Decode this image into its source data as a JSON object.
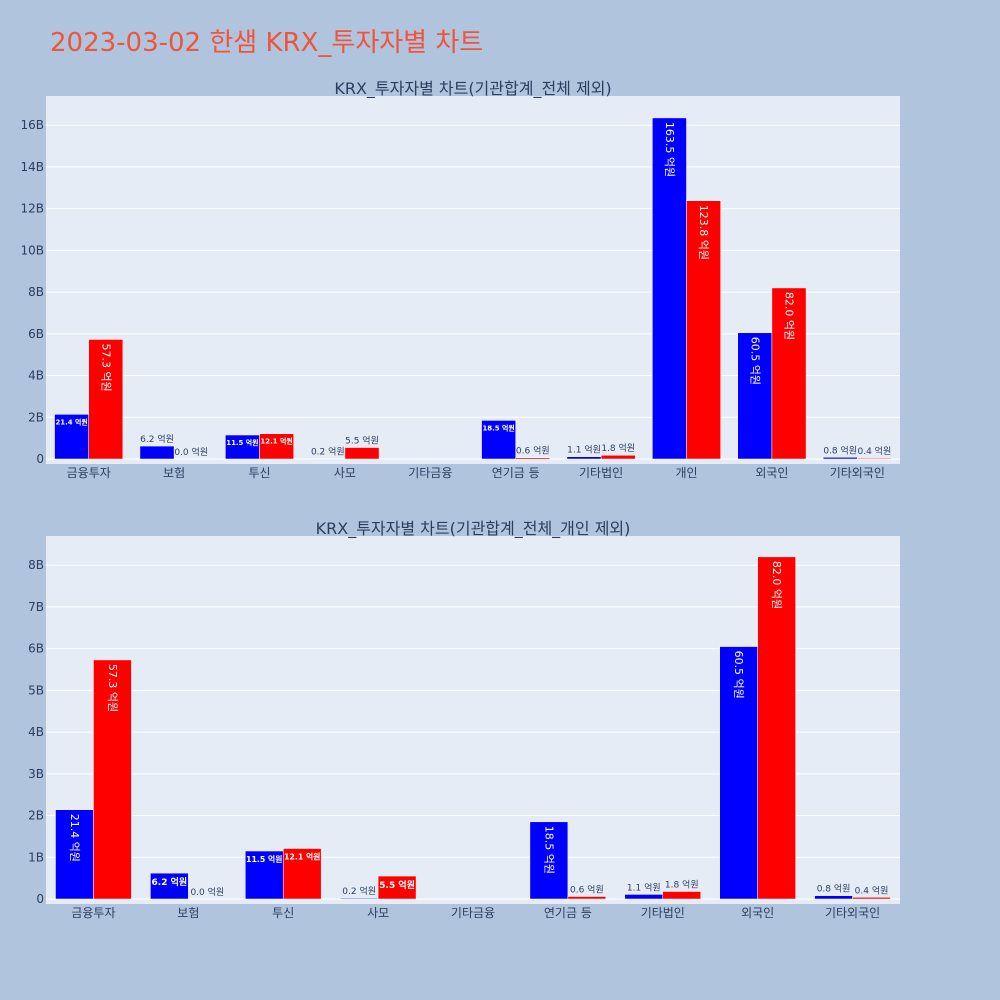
{
  "page": {
    "title": "2023-03-02 한샘 KRX_투자자별 차트",
    "background": "#b0c4de",
    "plot_background": "#e5ecf6",
    "title_color": "#ef553b"
  },
  "chart_data": [
    {
      "type": "bar",
      "title": "KRX_투자자별 차트(기관합계_전체 제외)",
      "categories": [
        "금융투자",
        "보험",
        "투신",
        "사모",
        "기타금융",
        "연기금 등",
        "기타법인",
        "개인",
        "외국인",
        "기타외국인"
      ],
      "series": [
        {
          "color": "#0000ff",
          "values": [
            2140000000,
            620000000,
            1150000000,
            20000000,
            0,
            1850000000,
            110000000,
            16350000000,
            6050000000,
            80000000
          ],
          "labels": [
            "21.4 억원",
            "6.2 억원",
            "11.5 억원",
            "0.2 억원",
            "",
            "18.5 억원",
            "1.1 억원",
            "163.5 억원",
            "60.5 억원",
            "0.8 억원"
          ]
        },
        {
          "color": "#ff0000",
          "values": [
            5730000000,
            0,
            1210000000,
            550000000,
            0,
            60000000,
            180000000,
            12380000000,
            8200000000,
            40000000
          ],
          "labels": [
            "57.3 억원",
            "0.0 억원",
            "12.1 억원",
            "5.5 억원",
            "",
            "0.6 억원",
            "1.8 억원",
            "123.8 억원",
            "82.0 억원",
            "0.4 억원"
          ]
        }
      ],
      "ylim": [
        0,
        17400000000
      ],
      "yticks": [
        0,
        2000000000,
        4000000000,
        6000000000,
        8000000000,
        10000000000,
        12000000000,
        14000000000,
        16000000000
      ],
      "ytick_labels": [
        "0",
        "2B",
        "4B",
        "6B",
        "8B",
        "10B",
        "12B",
        "14B",
        "16B"
      ],
      "grid": true
    },
    {
      "type": "bar",
      "title": "KRX_투자자별 차트(기관합계_전체_개인 제외)",
      "categories": [
        "금융투자",
        "보험",
        "투신",
        "사모",
        "기타금융",
        "연기금 등",
        "기타법인",
        "외국인",
        "기타외국인"
      ],
      "series": [
        {
          "color": "#0000ff",
          "values": [
            2140000000,
            620000000,
            1150000000,
            20000000,
            0,
            1850000000,
            110000000,
            6050000000,
            80000000
          ],
          "labels": [
            "21.4 억원",
            "6.2 억원",
            "11.5 억원",
            "0.2 억원",
            "",
            "18.5 억원",
            "1.1 억원",
            "60.5 억원",
            "0.8 억원"
          ]
        },
        {
          "color": "#ff0000",
          "values": [
            5730000000,
            0,
            1210000000,
            550000000,
            0,
            60000000,
            180000000,
            8200000000,
            40000000
          ],
          "labels": [
            "57.3 억원",
            "0.0 억원",
            "12.1 억원",
            "5.5 억원",
            "",
            "0.6 억원",
            "1.8 억원",
            "82.0 억원",
            "0.4 억원"
          ]
        }
      ],
      "ylim": [
        0,
        8700000000
      ],
      "yticks": [
        0,
        1000000000,
        2000000000,
        3000000000,
        4000000000,
        5000000000,
        6000000000,
        7000000000,
        8000000000
      ],
      "ytick_labels": [
        "0",
        "1B",
        "2B",
        "3B",
        "4B",
        "5B",
        "6B",
        "7B",
        "8B"
      ],
      "grid": true
    }
  ]
}
